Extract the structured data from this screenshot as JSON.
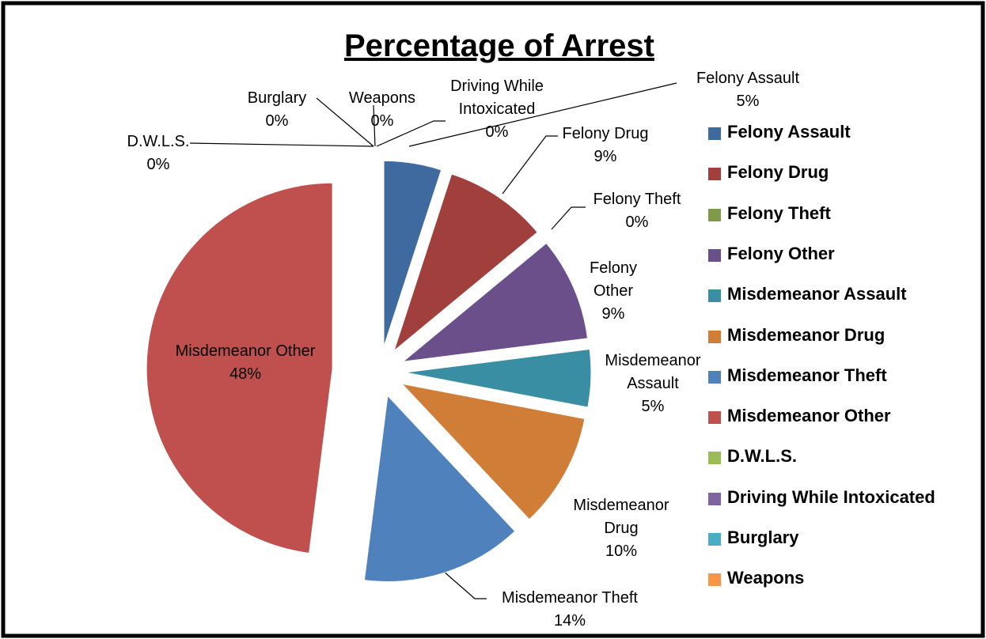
{
  "chart_data": {
    "type": "pie",
    "title": "Percentage of Arrest",
    "categories": [
      "Felony Assault",
      "Felony Drug",
      "Felony Theft",
      "Felony Other",
      "Misdemeanor Assault",
      "Misdemeanor Drug",
      "Misdemeanor Theft",
      "Misdemeanor Other",
      "D.W.L.S.",
      "Driving While Intoxicated",
      "Burglary",
      "Weapons"
    ],
    "values": [
      5,
      9,
      0,
      9,
      5,
      10,
      14,
      48,
      0,
      0,
      0,
      0
    ],
    "value_labels": [
      "5%",
      "9%",
      "0%",
      "9%",
      "5%",
      "10%",
      "14%",
      "48%",
      "0%",
      "0%",
      "0%",
      "0%"
    ],
    "colors": [
      "#3e6aa0",
      "#a03f3c",
      "#7f9a48",
      "#6a4f8a",
      "#3a8ea3",
      "#d07d38",
      "#4f81bd",
      "#c0504d",
      "#9bbb59",
      "#8064a2",
      "#4bacc6",
      "#f79646"
    ],
    "legend": "right"
  }
}
